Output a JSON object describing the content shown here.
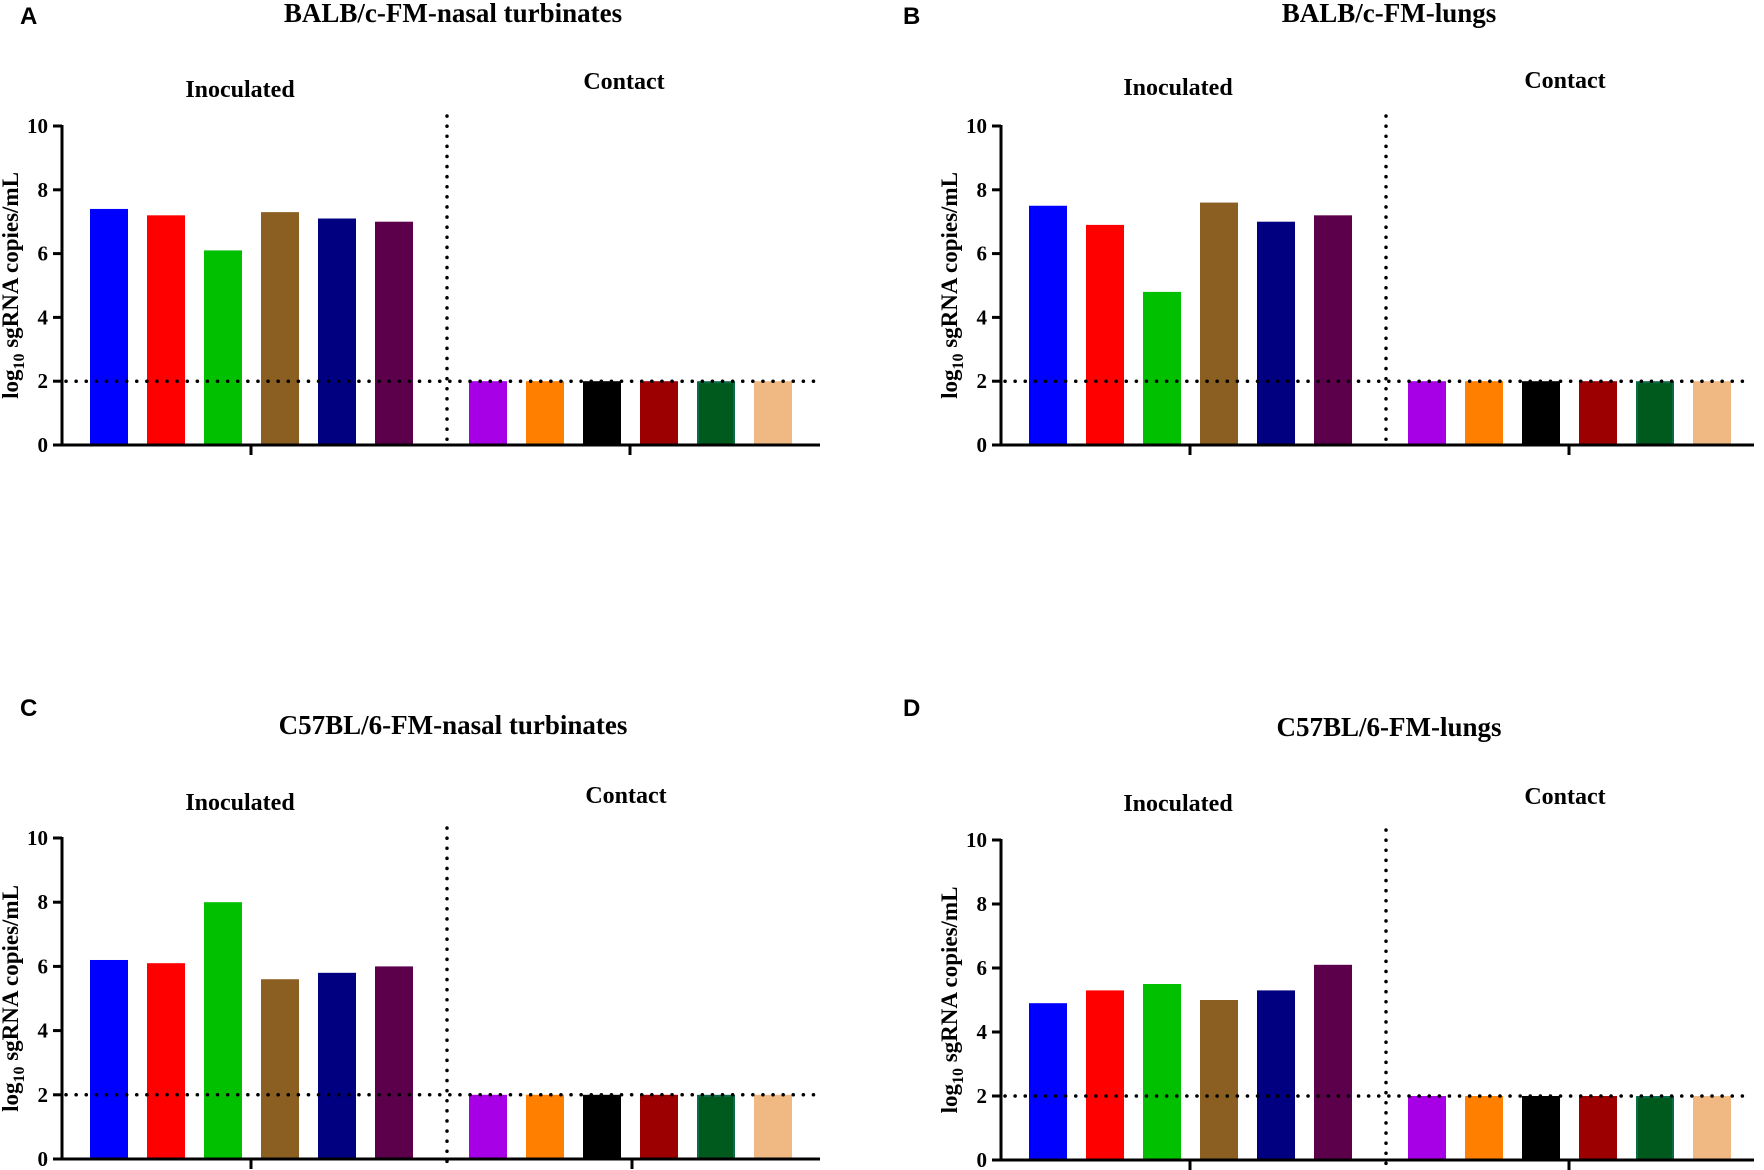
{
  "colors": {
    "inoculated": [
      "#0000ff",
      "#ff0000",
      "#00c000",
      "#8b5e22",
      "#000080",
      "#5c004c"
    ],
    "contact": [
      "#a800e6",
      "#ff8000",
      "#000000",
      "#9c0000",
      "#005a1e",
      "#f0b882"
    ],
    "contact_stroke": [
      "#a800e6",
      "#ff8000",
      "#000000",
      "#9c0000",
      "#0a6b4a",
      "#f0b882"
    ]
  },
  "chart_data": [
    {
      "type": "bar",
      "panel": "A",
      "title": "BALB/c-FM-nasal turbinates",
      "groups": [
        "Inoculated",
        "Contact"
      ],
      "ylabel": "log10 sgRNA copies/mL",
      "ylim": [
        0,
        10
      ],
      "yticks": [
        "0",
        "2",
        "4",
        "6",
        "8",
        "10"
      ],
      "limit_of_detection": 2,
      "series": [
        {
          "name": "Inoculated",
          "values": [
            7.4,
            7.2,
            6.1,
            7.3,
            7.1,
            7.0
          ]
        },
        {
          "name": "Contact",
          "values": [
            2.0,
            2.0,
            2.0,
            2.0,
            2.0,
            2.0
          ]
        }
      ]
    },
    {
      "type": "bar",
      "panel": "B",
      "title": "BALB/c-FM-lungs",
      "groups": [
        "Inoculated",
        "Contact"
      ],
      "ylabel": "log10 sgRNA copies/mL",
      "ylim": [
        0,
        10
      ],
      "yticks": [
        "0",
        "2",
        "4",
        "6",
        "8",
        "10"
      ],
      "limit_of_detection": 2,
      "series": [
        {
          "name": "Inoculated",
          "values": [
            7.5,
            6.9,
            4.8,
            7.6,
            7.0,
            7.2
          ]
        },
        {
          "name": "Contact",
          "values": [
            2.0,
            2.0,
            2.0,
            2.0,
            2.0,
            2.0
          ]
        }
      ]
    },
    {
      "type": "bar",
      "panel": "C",
      "title": "C57BL/6-FM-nasal turbinates",
      "groups": [
        "Inoculated",
        "Contact"
      ],
      "ylabel": "log10 sgRNA copies/mL",
      "ylim": [
        0,
        10
      ],
      "yticks": [
        "0",
        "2",
        "4",
        "6",
        "8",
        "10"
      ],
      "limit_of_detection": 2,
      "series": [
        {
          "name": "Inoculated",
          "values": [
            6.2,
            6.1,
            8.0,
            5.6,
            5.8,
            6.0
          ]
        },
        {
          "name": "Contact",
          "values": [
            2.0,
            2.0,
            2.0,
            2.0,
            2.0,
            2.0
          ]
        }
      ]
    },
    {
      "type": "bar",
      "panel": "D",
      "title": "C57BL/6-FM-lungs",
      "groups": [
        "Inoculated",
        "Contact"
      ],
      "ylabel": "log10 sgRNA copies/mL",
      "ylim": [
        0,
        10
      ],
      "yticks": [
        "0",
        "2",
        "4",
        "6",
        "8",
        "10"
      ],
      "limit_of_detection": 2,
      "series": [
        {
          "name": "Inoculated",
          "values": [
            4.9,
            5.3,
            5.5,
            5.0,
            5.3,
            6.1
          ]
        },
        {
          "name": "Contact",
          "values": [
            2.0,
            2.0,
            2.0,
            2.0,
            2.0,
            2.0
          ]
        }
      ]
    }
  ]
}
